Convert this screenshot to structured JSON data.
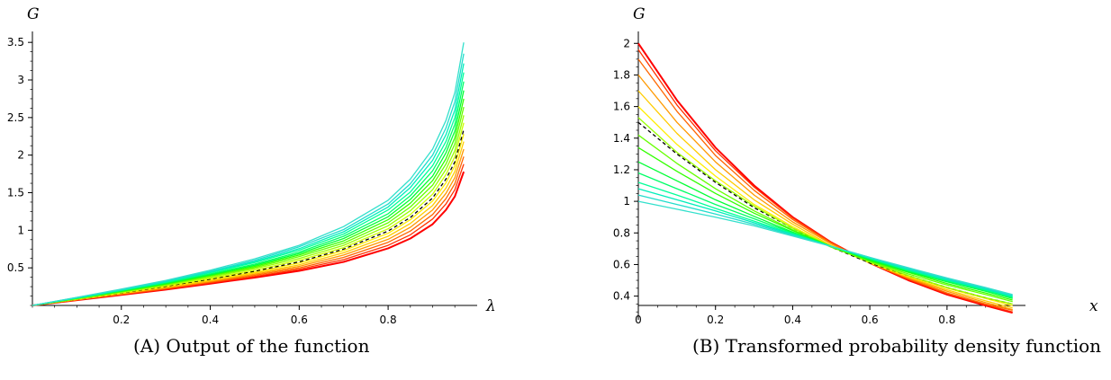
{
  "captions": {
    "a": {
      "tag": "(A)",
      "text": "Output of the function"
    },
    "b": {
      "tag": "(B)",
      "text": "Transformed probability density function"
    }
  },
  "chart_data": [
    {
      "type": "line",
      "ylabel": "G",
      "xlabel": "λ",
      "xlim": [
        0,
        0.98
      ],
      "ylim": [
        0,
        3.55
      ],
      "x_ticks": [
        0.2,
        0.4,
        0.6,
        0.8
      ],
      "x_tick_labels": [
        "0.2",
        "0.4",
        "0.6",
        "0.8"
      ],
      "y_ticks": [
        0.5,
        1,
        1.5,
        2,
        2.5,
        3,
        3.5
      ],
      "y_tick_labels": [
        "0.5",
        "1",
        "1.5",
        "2",
        "2.5",
        "3",
        "3.5"
      ],
      "grid": false,
      "x": [
        0,
        0.1,
        0.2,
        0.3,
        0.4,
        0.5,
        0.6,
        0.7,
        0.8,
        0.85,
        0.9,
        0.93,
        0.95,
        0.97
      ],
      "series": [
        {
          "color": "#ff0000",
          "values": [
            0,
            0.07,
            0.14,
            0.21,
            0.29,
            0.37,
            0.46,
            0.58,
            0.76,
            0.89,
            1.08,
            1.27,
            1.45,
            1.78
          ]
        },
        {
          "color": "#ff3300",
          "values": [
            0,
            0.072,
            0.145,
            0.218,
            0.3,
            0.385,
            0.48,
            0.61,
            0.8,
            0.94,
            1.15,
            1.35,
            1.54,
            1.88
          ]
        },
        {
          "color": "#ff6600",
          "values": [
            0,
            0.075,
            0.15,
            0.226,
            0.31,
            0.4,
            0.5,
            0.64,
            0.84,
            0.99,
            1.21,
            1.42,
            1.62,
            1.98
          ]
        },
        {
          "color": "#ff9900",
          "values": [
            0,
            0.078,
            0.155,
            0.234,
            0.32,
            0.415,
            0.52,
            0.67,
            0.88,
            1.04,
            1.27,
            1.49,
            1.7,
            2.08
          ]
        },
        {
          "color": "#ffcc00",
          "values": [
            0,
            0.08,
            0.16,
            0.242,
            0.33,
            0.43,
            0.54,
            0.7,
            0.92,
            1.09,
            1.33,
            1.56,
            1.78,
            2.18
          ]
        },
        {
          "color": "#ffee00",
          "values": [
            0,
            0.082,
            0.165,
            0.25,
            0.345,
            0.445,
            0.565,
            0.73,
            0.96,
            1.14,
            1.39,
            1.63,
            1.86,
            2.28
          ]
        },
        {
          "color": "#000000",
          "dashed": true,
          "values": [
            0,
            0.084,
            0.168,
            0.254,
            0.35,
            0.455,
            0.58,
            0.75,
            0.99,
            1.17,
            1.43,
            1.68,
            1.91,
            2.34
          ]
        },
        {
          "color": "#ccff00",
          "values": [
            0,
            0.086,
            0.172,
            0.262,
            0.36,
            0.47,
            0.6,
            0.77,
            1.02,
            1.21,
            1.48,
            1.74,
            1.98,
            2.43
          ]
        },
        {
          "color": "#99ff00",
          "values": [
            0,
            0.088,
            0.177,
            0.27,
            0.375,
            0.49,
            0.625,
            0.8,
            1.06,
            1.26,
            1.54,
            1.81,
            2.06,
            2.53
          ]
        },
        {
          "color": "#66ff00",
          "values": [
            0,
            0.091,
            0.182,
            0.278,
            0.39,
            0.505,
            0.65,
            0.83,
            1.1,
            1.31,
            1.6,
            1.88,
            2.15,
            2.64
          ]
        },
        {
          "color": "#33ff00",
          "values": [
            0,
            0.093,
            0.187,
            0.286,
            0.4,
            0.52,
            0.67,
            0.86,
            1.14,
            1.36,
            1.66,
            1.95,
            2.23,
            2.75
          ]
        },
        {
          "color": "#00ff33",
          "values": [
            0,
            0.096,
            0.192,
            0.294,
            0.41,
            0.535,
            0.69,
            0.89,
            1.18,
            1.41,
            1.72,
            2.03,
            2.32,
            2.86
          ]
        },
        {
          "color": "#00ff66",
          "values": [
            0,
            0.098,
            0.197,
            0.302,
            0.42,
            0.55,
            0.71,
            0.92,
            1.22,
            1.46,
            1.79,
            2.1,
            2.41,
            2.98
          ]
        },
        {
          "color": "#00ff99",
          "values": [
            0,
            0.1,
            0.202,
            0.31,
            0.435,
            0.57,
            0.735,
            0.95,
            1.27,
            1.51,
            1.86,
            2.18,
            2.5,
            3.1
          ]
        },
        {
          "color": "#00eebb",
          "values": [
            0,
            0.103,
            0.207,
            0.318,
            0.445,
            0.585,
            0.755,
            0.98,
            1.31,
            1.57,
            1.93,
            2.27,
            2.6,
            3.22
          ]
        },
        {
          "color": "#22ddcc",
          "values": [
            0,
            0.105,
            0.212,
            0.326,
            0.455,
            0.6,
            0.78,
            1.01,
            1.35,
            1.62,
            2.0,
            2.36,
            2.71,
            3.35
          ]
        },
        {
          "color": "#33e0cc",
          "values": [
            0,
            0.108,
            0.217,
            0.334,
            0.47,
            0.62,
            0.8,
            1.05,
            1.4,
            1.68,
            2.08,
            2.46,
            2.83,
            3.5
          ]
        }
      ]
    },
    {
      "type": "line",
      "ylabel": "G",
      "xlabel": "x",
      "xlim": [
        0,
        0.98
      ],
      "ylim": [
        0.25,
        2.03
      ],
      "x_ticks": [
        0,
        0.2,
        0.4,
        0.6,
        0.8
      ],
      "x_tick_labels": [
        "0",
        "0.2",
        "0.4",
        "0.6",
        "0.8"
      ],
      "y_ticks": [
        0.4,
        0.6,
        0.8,
        1,
        1.2,
        1.4,
        1.6,
        1.8,
        2
      ],
      "y_tick_labels": [
        "0.4",
        "0.6",
        "0.8",
        "1",
        "1.2",
        "1.4",
        "1.6",
        "1.8",
        "2"
      ],
      "grid": false,
      "x": [
        0,
        0.1,
        0.2,
        0.3,
        0.4,
        0.5,
        0.6,
        0.7,
        0.8,
        0.9,
        0.97
      ],
      "series": [
        {
          "color": "#ff0000",
          "values": [
            2.0,
            1.64,
            1.34,
            1.1,
            0.9,
            0.74,
            0.61,
            0.5,
            0.41,
            0.34,
            0.295
          ]
        },
        {
          "color": "#ff3300",
          "values": [
            1.96,
            1.61,
            1.32,
            1.09,
            0.895,
            0.74,
            0.61,
            0.505,
            0.415,
            0.345,
            0.3
          ]
        },
        {
          "color": "#ff6600",
          "values": [
            1.9,
            1.57,
            1.29,
            1.07,
            0.885,
            0.735,
            0.61,
            0.51,
            0.42,
            0.35,
            0.31
          ]
        },
        {
          "color": "#ff9900",
          "values": [
            1.8,
            1.5,
            1.25,
            1.04,
            0.87,
            0.73,
            0.61,
            0.515,
            0.43,
            0.36,
            0.315
          ]
        },
        {
          "color": "#ffcc00",
          "values": [
            1.7,
            1.43,
            1.2,
            1.01,
            0.855,
            0.72,
            0.61,
            0.52,
            0.44,
            0.37,
            0.325
          ]
        },
        {
          "color": "#ffee00",
          "values": [
            1.6,
            1.36,
            1.16,
            0.98,
            0.84,
            0.715,
            0.61,
            0.525,
            0.45,
            0.385,
            0.34
          ]
        },
        {
          "color": "#000000",
          "dashed": true,
          "values": [
            1.5,
            1.3,
            1.12,
            0.96,
            0.83,
            0.71,
            0.61,
            0.53,
            0.455,
            0.39,
            0.35
          ]
        },
        {
          "color": "#99ff00",
          "values": [
            1.53,
            1.31,
            1.13,
            0.97,
            0.83,
            0.715,
            0.615,
            0.53,
            0.455,
            0.39,
            0.35
          ]
        },
        {
          "color": "#66ff00",
          "values": [
            1.42,
            1.24,
            1.08,
            0.94,
            0.82,
            0.71,
            0.62,
            0.54,
            0.47,
            0.41,
            0.365
          ]
        },
        {
          "color": "#33ff00",
          "values": [
            1.34,
            1.19,
            1.05,
            0.925,
            0.815,
            0.715,
            0.625,
            0.55,
            0.48,
            0.42,
            0.375
          ]
        },
        {
          "color": "#00ff33",
          "values": [
            1.25,
            1.13,
            1.01,
            0.905,
            0.805,
            0.715,
            0.63,
            0.555,
            0.49,
            0.43,
            0.385
          ]
        },
        {
          "color": "#00ff66",
          "values": [
            1.18,
            1.08,
            0.98,
            0.89,
            0.8,
            0.715,
            0.635,
            0.56,
            0.495,
            0.435,
            0.39
          ]
        },
        {
          "color": "#00ff99",
          "values": [
            1.12,
            1.04,
            0.955,
            0.875,
            0.795,
            0.715,
            0.64,
            0.565,
            0.5,
            0.44,
            0.395
          ]
        },
        {
          "color": "#00eebb",
          "values": [
            1.08,
            1.01,
            0.94,
            0.865,
            0.79,
            0.715,
            0.64,
            0.57,
            0.505,
            0.445,
            0.4
          ]
        },
        {
          "color": "#22ddcc",
          "values": [
            1.04,
            0.98,
            0.92,
            0.855,
            0.785,
            0.715,
            0.645,
            0.575,
            0.51,
            0.45,
            0.405
          ]
        },
        {
          "color": "#33e0cc",
          "values": [
            1.0,
            0.95,
            0.9,
            0.845,
            0.78,
            0.715,
            0.645,
            0.58,
            0.515,
            0.455,
            0.41
          ]
        }
      ]
    }
  ]
}
